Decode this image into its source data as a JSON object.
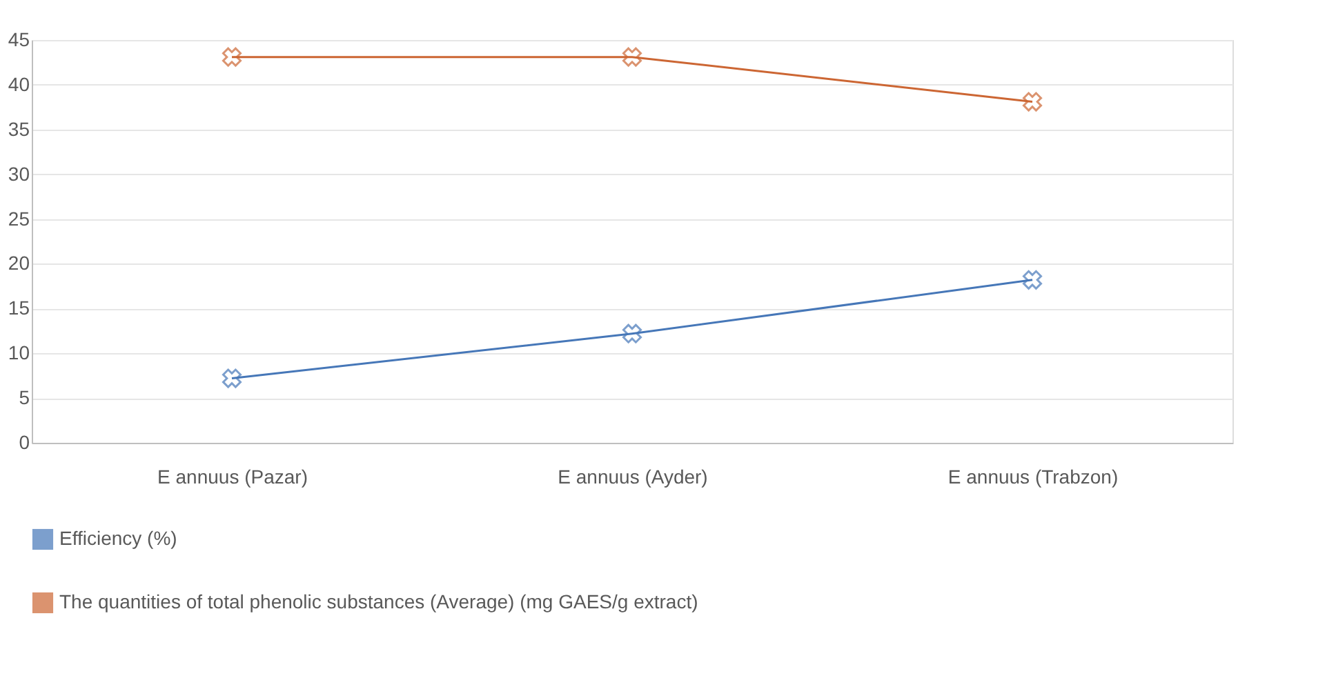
{
  "chart_data": {
    "type": "line",
    "categories": [
      "E annuus (Pazar)",
      "E annuus (Ayder)",
      "E annuus (Trabzon)"
    ],
    "series": [
      {
        "name": "Efficiency (%)",
        "color": "#4677b8",
        "values": [
          7.2,
          12.2,
          18.2
        ]
      },
      {
        "name": "The quantities of total phenolic substances (Average) (mg GAES/g extract)",
        "color": "#cc6633",
        "values": [
          43.1,
          43.1,
          38.1
        ]
      }
    ],
    "ylim": [
      0,
      45
    ],
    "yticks": [
      0,
      5,
      10,
      15,
      20,
      25,
      30,
      35,
      40,
      45
    ],
    "grid": "y",
    "legend": "bottom",
    "marker": "cross",
    "line_style": "solid"
  }
}
